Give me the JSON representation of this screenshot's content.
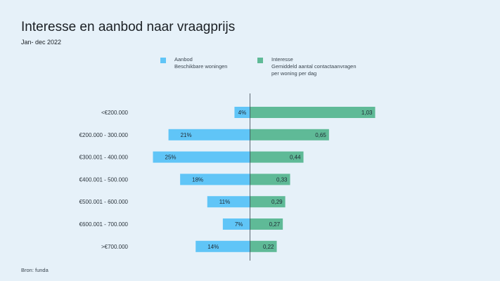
{
  "header": {
    "title": "Interesse en aanbod naar vraagprijs",
    "subtitle": "Jan- dec 2022"
  },
  "legend": {
    "aanbod": {
      "label": "Aanbod",
      "sublabel": "Beschikbare woningen",
      "color": "#60c5f7"
    },
    "interesse": {
      "label": "Interesse",
      "sublabel_line1": "Gemiddeld aantal contactaanvragen",
      "sublabel_line2": "per woning per dag",
      "color": "#5fba97"
    }
  },
  "source": "Bron: funda",
  "chart_data": {
    "type": "bar",
    "orientation": "horizontal-diverging",
    "title": "Interesse en aanbod naar vraagprijs",
    "subtitle": "Jan- dec 2022",
    "categories": [
      "<€200.000",
      "€200.000 - 300.000",
      "€300.001 - 400.000",
      "€400.001 - 500.000",
      "€500.001 - 600.000",
      "€600.001 - 700.000",
      ">€700.000"
    ],
    "series": [
      {
        "name": "Aanbod",
        "description": "Beschikbare woningen",
        "unit": "%",
        "direction": "left",
        "values": [
          4,
          21,
          25,
          18,
          11,
          7,
          14
        ],
        "labels": [
          "4%",
          "21%",
          "25%",
          "18%",
          "11%",
          "7%",
          "14%"
        ]
      },
      {
        "name": "Interesse",
        "description": "Gemiddeld aantal contactaanvragen per woning per dag",
        "direction": "right",
        "values": [
          1.03,
          0.65,
          0.44,
          0.33,
          0.29,
          0.27,
          0.22
        ],
        "labels": [
          "1,03",
          "0,65",
          "0,44",
          "0,33",
          "0,29",
          "0,27",
          "0,22"
        ]
      }
    ],
    "aanbod_max": 25,
    "interesse_max": 1.03,
    "grid": false,
    "legend_position": "top"
  }
}
